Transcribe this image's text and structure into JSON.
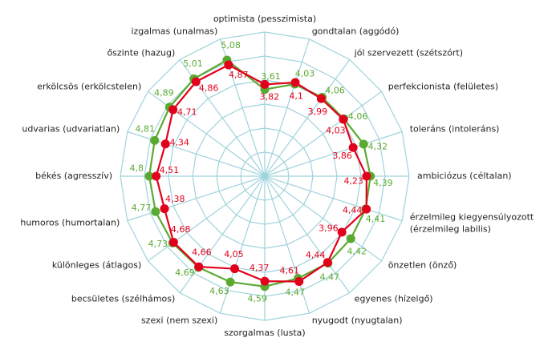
{
  "chart_data": {
    "type": "radar",
    "categories": [
      "optimista (pesszimista)",
      "gondtalan (aggódó)",
      "jól szervezett (szétszórt)",
      "perfekcionista (felületes)",
      "toleráns (intoleráns)",
      "ambiciózus (céltalan)",
      "érzelmileg kiegyensúlyozott\n(érzelmileg labilis)",
      "önzetlen (önző)",
      "egyenes (hízelgő)",
      "nyugodt (nyugtalan)",
      "szorgalmas (lusta)",
      "szexi (nem szexi)",
      "becsületes (szélhámos)",
      "különleges (átlagos)",
      "humoros (humortalan)",
      "békés (agresszív)",
      "udvarias (udvariatlan)",
      "erkölcsös (erkölcstelen)",
      "őszinte (hazug)",
      "izgalmas (unalmas)"
    ],
    "series": [
      {
        "color": "#5aaa32",
        "values": [
          3.61,
          4.03,
          4.06,
          4.06,
          4.32,
          4.39,
          4.41,
          4.42,
          4.47,
          4.47,
          4.59,
          4.63,
          4.69,
          4.73,
          4.77,
          4.8,
          4.81,
          4.89,
          5.01,
          5.08
        ],
        "value_labels": [
          "3,61",
          "4,03",
          "4,06",
          "4,06",
          "4,32",
          "4,39",
          "4,41",
          "4,42",
          "4,47",
          "4,47",
          "4,59",
          "4,63",
          "4,69",
          "4,73",
          "4,77",
          "4,8",
          "4,81",
          "4,89",
          "5,01",
          "5,08"
        ]
      },
      {
        "color": "#e3001b",
        "values": [
          3.82,
          4.1,
          3.99,
          4.03,
          3.86,
          4.23,
          4.44,
          3.96,
          4.44,
          4.61,
          4.37,
          4.05,
          4.66,
          4.68,
          4.38,
          4.51,
          4.34,
          4.71,
          4.86,
          4.87
        ],
        "value_labels": [
          "3,82",
          "4,1",
          "3,99",
          "4,03",
          "3,86",
          "4,23",
          "4,44",
          "3,96",
          "4,44",
          "4,61",
          "4,37",
          "4,05",
          "4,66",
          "4,68",
          "4,38",
          "4,51",
          "4,34",
          "4,71",
          "4,86",
          "4,87"
        ]
      }
    ],
    "ylim": [
      0,
      6
    ],
    "yticks": [
      1,
      2,
      3,
      4,
      5,
      6
    ],
    "grid": true
  }
}
